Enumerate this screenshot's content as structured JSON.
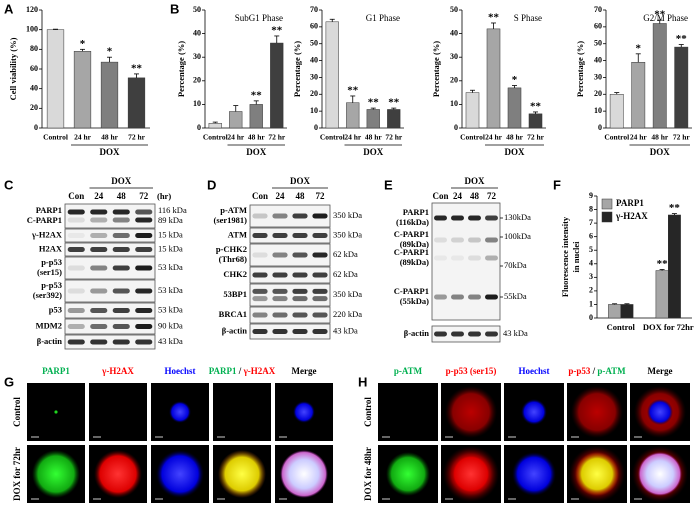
{
  "panel_labels": [
    "A",
    "B",
    "C",
    "D",
    "E",
    "F",
    "G",
    "H"
  ],
  "chart_data": [
    {
      "type": "bar",
      "y_label": "Cell viability (%)",
      "categories": [
        "Control",
        "24 hr",
        "48 hr",
        "72 hr"
      ],
      "values": [
        100,
        78,
        67,
        51
      ],
      "errors": [
        0.5,
        2,
        5,
        4
      ],
      "annotations": [
        null,
        "*",
        "*",
        "**"
      ],
      "group_label": "DOX",
      "colors": [
        "#d9d9d9",
        "#a6a6a6",
        "#7f7f7f",
        "#3f3f3f"
      ],
      "ylim": [
        0,
        120
      ],
      "yticks": [
        0,
        20,
        40,
        60,
        80,
        100,
        120
      ]
    },
    {
      "type": "bar",
      "title": "SubG1 Phase",
      "y_label": "Percentage (%)",
      "categories": [
        "Control",
        "24 hr",
        "48 hr",
        "72 hr"
      ],
      "values": [
        2,
        7,
        10,
        36
      ],
      "errors": [
        0.5,
        2.5,
        1.5,
        3
      ],
      "annotations": [
        null,
        null,
        "**",
        "**"
      ],
      "group_label": "DOX",
      "colors": [
        "#d9d9d9",
        "#a6a6a6",
        "#7f7f7f",
        "#3f3f3f"
      ],
      "ylim": [
        0,
        50
      ],
      "yticks": [
        0,
        10,
        20,
        30,
        40,
        50
      ]
    },
    {
      "type": "bar",
      "title": "G1 Phase",
      "y_label": "Percentage (%)",
      "categories": [
        "Control",
        "24 hr",
        "48 hr",
        "72 hr"
      ],
      "values": [
        63,
        15,
        11,
        11
      ],
      "errors": [
        1.5,
        4,
        0.8,
        0.8
      ],
      "annotations": [
        null,
        "**",
        "**",
        "**"
      ],
      "group_label": "DOX",
      "colors": [
        "#d9d9d9",
        "#a6a6a6",
        "#7f7f7f",
        "#3f3f3f"
      ],
      "ylim": [
        0,
        70
      ],
      "yticks": [
        0,
        10,
        20,
        30,
        40,
        50,
        60,
        70
      ]
    },
    {
      "type": "bar",
      "title": "S Phase",
      "y_label": "Percentage (%)",
      "categories": [
        "Control",
        "24 hr",
        "48 hr",
        "72 hr"
      ],
      "values": [
        15,
        42,
        17,
        6
      ],
      "errors": [
        1,
        2.5,
        1,
        0.8
      ],
      "annotations": [
        null,
        "**",
        "*",
        "**"
      ],
      "group_label": "DOX",
      "colors": [
        "#d9d9d9",
        "#a6a6a6",
        "#7f7f7f",
        "#3f3f3f"
      ],
      "ylim": [
        0,
        50
      ],
      "yticks": [
        0,
        10,
        20,
        30,
        40,
        50
      ]
    },
    {
      "type": "bar",
      "title": "G2/M Phase",
      "y_label": "Percentage (%)",
      "categories": [
        "Control",
        "24 hr",
        "48 hr",
        "72 hr"
      ],
      "values": [
        20,
        39,
        62,
        48
      ],
      "errors": [
        1,
        5,
        2,
        1.5
      ],
      "annotations": [
        null,
        "*",
        "**",
        "**"
      ],
      "group_label": "DOX",
      "colors": [
        "#d9d9d9",
        "#a6a6a6",
        "#7f7f7f",
        "#3f3f3f"
      ],
      "ylim": [
        0,
        70
      ],
      "yticks": [
        0,
        10,
        20,
        30,
        40,
        50,
        60,
        70
      ]
    },
    {
      "type": "bar",
      "y_label": [
        "Fluorescence intensity",
        "in nuclei"
      ],
      "categories": [
        "Control",
        "DOX for 72hr"
      ],
      "series": [
        {
          "name": "PARP1",
          "color": "#a6a6a6",
          "values": [
            1,
            3.5
          ],
          "errors": [
            0.05,
            0.08
          ],
          "annotations": [
            null,
            "**"
          ]
        },
        {
          "name": "γ-H2AX",
          "color": "#262626",
          "values": [
            1,
            7.6
          ],
          "errors": [
            0.05,
            0.1
          ],
          "annotations": [
            null,
            "**"
          ]
        }
      ],
      "ylim": [
        0,
        9
      ],
      "yticks": [
        0,
        1,
        2,
        3,
        4,
        5,
        6,
        7,
        8,
        9
      ],
      "legend": "top-left"
    }
  ],
  "blots": [
    {
      "treatment": "DOX",
      "lanes": [
        "Con",
        "24",
        "48",
        "72"
      ],
      "unit": "(hr)",
      "rows": [
        {
          "label": [
            "PARP1",
            "C-PARP1"
          ],
          "kda": [
            "116 kDa",
            "89 kDa"
          ]
        },
        {
          "label": [
            "γ-H2AX"
          ],
          "kda": [
            "15 kDa"
          ]
        },
        {
          "label": [
            "H2AX"
          ],
          "kda": [
            "15 kDa"
          ]
        },
        {
          "label": [
            "p-p53",
            "(ser15)"
          ],
          "kda": [
            "53 kDa"
          ]
        },
        {
          "label": [
            "p-p53",
            "(ser392)"
          ],
          "kda": [
            "53 kDa"
          ]
        },
        {
          "label": [
            "p53"
          ],
          "kda": [
            "53 kDa"
          ]
        },
        {
          "label": [
            "MDM2"
          ],
          "kda": [
            "90 kDa"
          ]
        },
        {
          "label": [
            "β-actin"
          ],
          "kda": [
            "43 kDa"
          ]
        }
      ]
    },
    {
      "treatment": "DOX",
      "lanes": [
        "Con",
        "24",
        "48",
        "72"
      ],
      "rows": [
        {
          "label": [
            "p-ATM",
            "(ser1981)"
          ],
          "kda": [
            "350 kDa"
          ]
        },
        {
          "label": [
            "ATM"
          ],
          "kda": [
            "350 kDa"
          ]
        },
        {
          "label": [
            "p-CHK2",
            "(Thr68)"
          ],
          "kda": [
            "62 kDa"
          ]
        },
        {
          "label": [
            "CHK2"
          ],
          "kda": [
            "62 kDa"
          ]
        },
        {
          "label": [
            "53BP1"
          ],
          "kda": [
            "350 kDa"
          ]
        },
        {
          "label": [
            "BRCA1"
          ],
          "kda": [
            "220 kDa"
          ]
        },
        {
          "label": [
            "β-actin"
          ],
          "kda": [
            "43 kDa"
          ]
        }
      ]
    },
    {
      "treatment": "DOX",
      "lanes": [
        "Con",
        "24",
        "48",
        "72"
      ],
      "rows": [
        {
          "label": [
            "PARP1",
            "(116kDa)"
          ]
        },
        {
          "label": [
            "C-PARP1",
            "(89kDa)"
          ]
        },
        {
          "label": [
            "C-PARP1",
            "(89kDa)"
          ]
        },
        {
          "label": [
            "C-PARP1",
            "(55kDa)"
          ]
        },
        {
          "label": [
            "β-actin"
          ],
          "kda": [
            "43 kDa"
          ]
        }
      ],
      "markers": [
        "130kDa",
        "100kDa",
        "70kDa",
        "55kDa"
      ]
    }
  ],
  "images": [
    {
      "headers": [
        [
          {
            "text": "PARP1",
            "color": "#00b050"
          }
        ],
        [
          {
            "text": "γ-H2AX",
            "color": "#ff0000"
          }
        ],
        [
          {
            "text": "Hoechst",
            "color": "#0000ff"
          }
        ],
        [
          {
            "text": "PARP1",
            "color": "#00b050"
          },
          {
            "text": " / ",
            "color": "#000000"
          },
          {
            "text": "γ-H2AX",
            "color": "#ff0000"
          }
        ],
        [
          {
            "text": "Merge",
            "color": "#000000"
          }
        ]
      ],
      "rows": [
        "Control",
        "DOX for 72hr"
      ]
    },
    {
      "headers": [
        [
          {
            "text": "p-ATM",
            "color": "#00b050"
          }
        ],
        [
          {
            "text": "p-p53  (ser15)",
            "color": "#ff0000"
          }
        ],
        [
          {
            "text": "Hoechst",
            "color": "#0000ff"
          }
        ],
        [
          {
            "text": "p-p53",
            "color": "#ff0000"
          },
          {
            "text": " / ",
            "color": "#000000"
          },
          {
            "text": "p-ATM",
            "color": "#00b050"
          }
        ],
        [
          {
            "text": "Merge",
            "color": "#000000"
          }
        ]
      ],
      "rows": [
        "Control",
        "DOX for 48hr"
      ]
    }
  ]
}
